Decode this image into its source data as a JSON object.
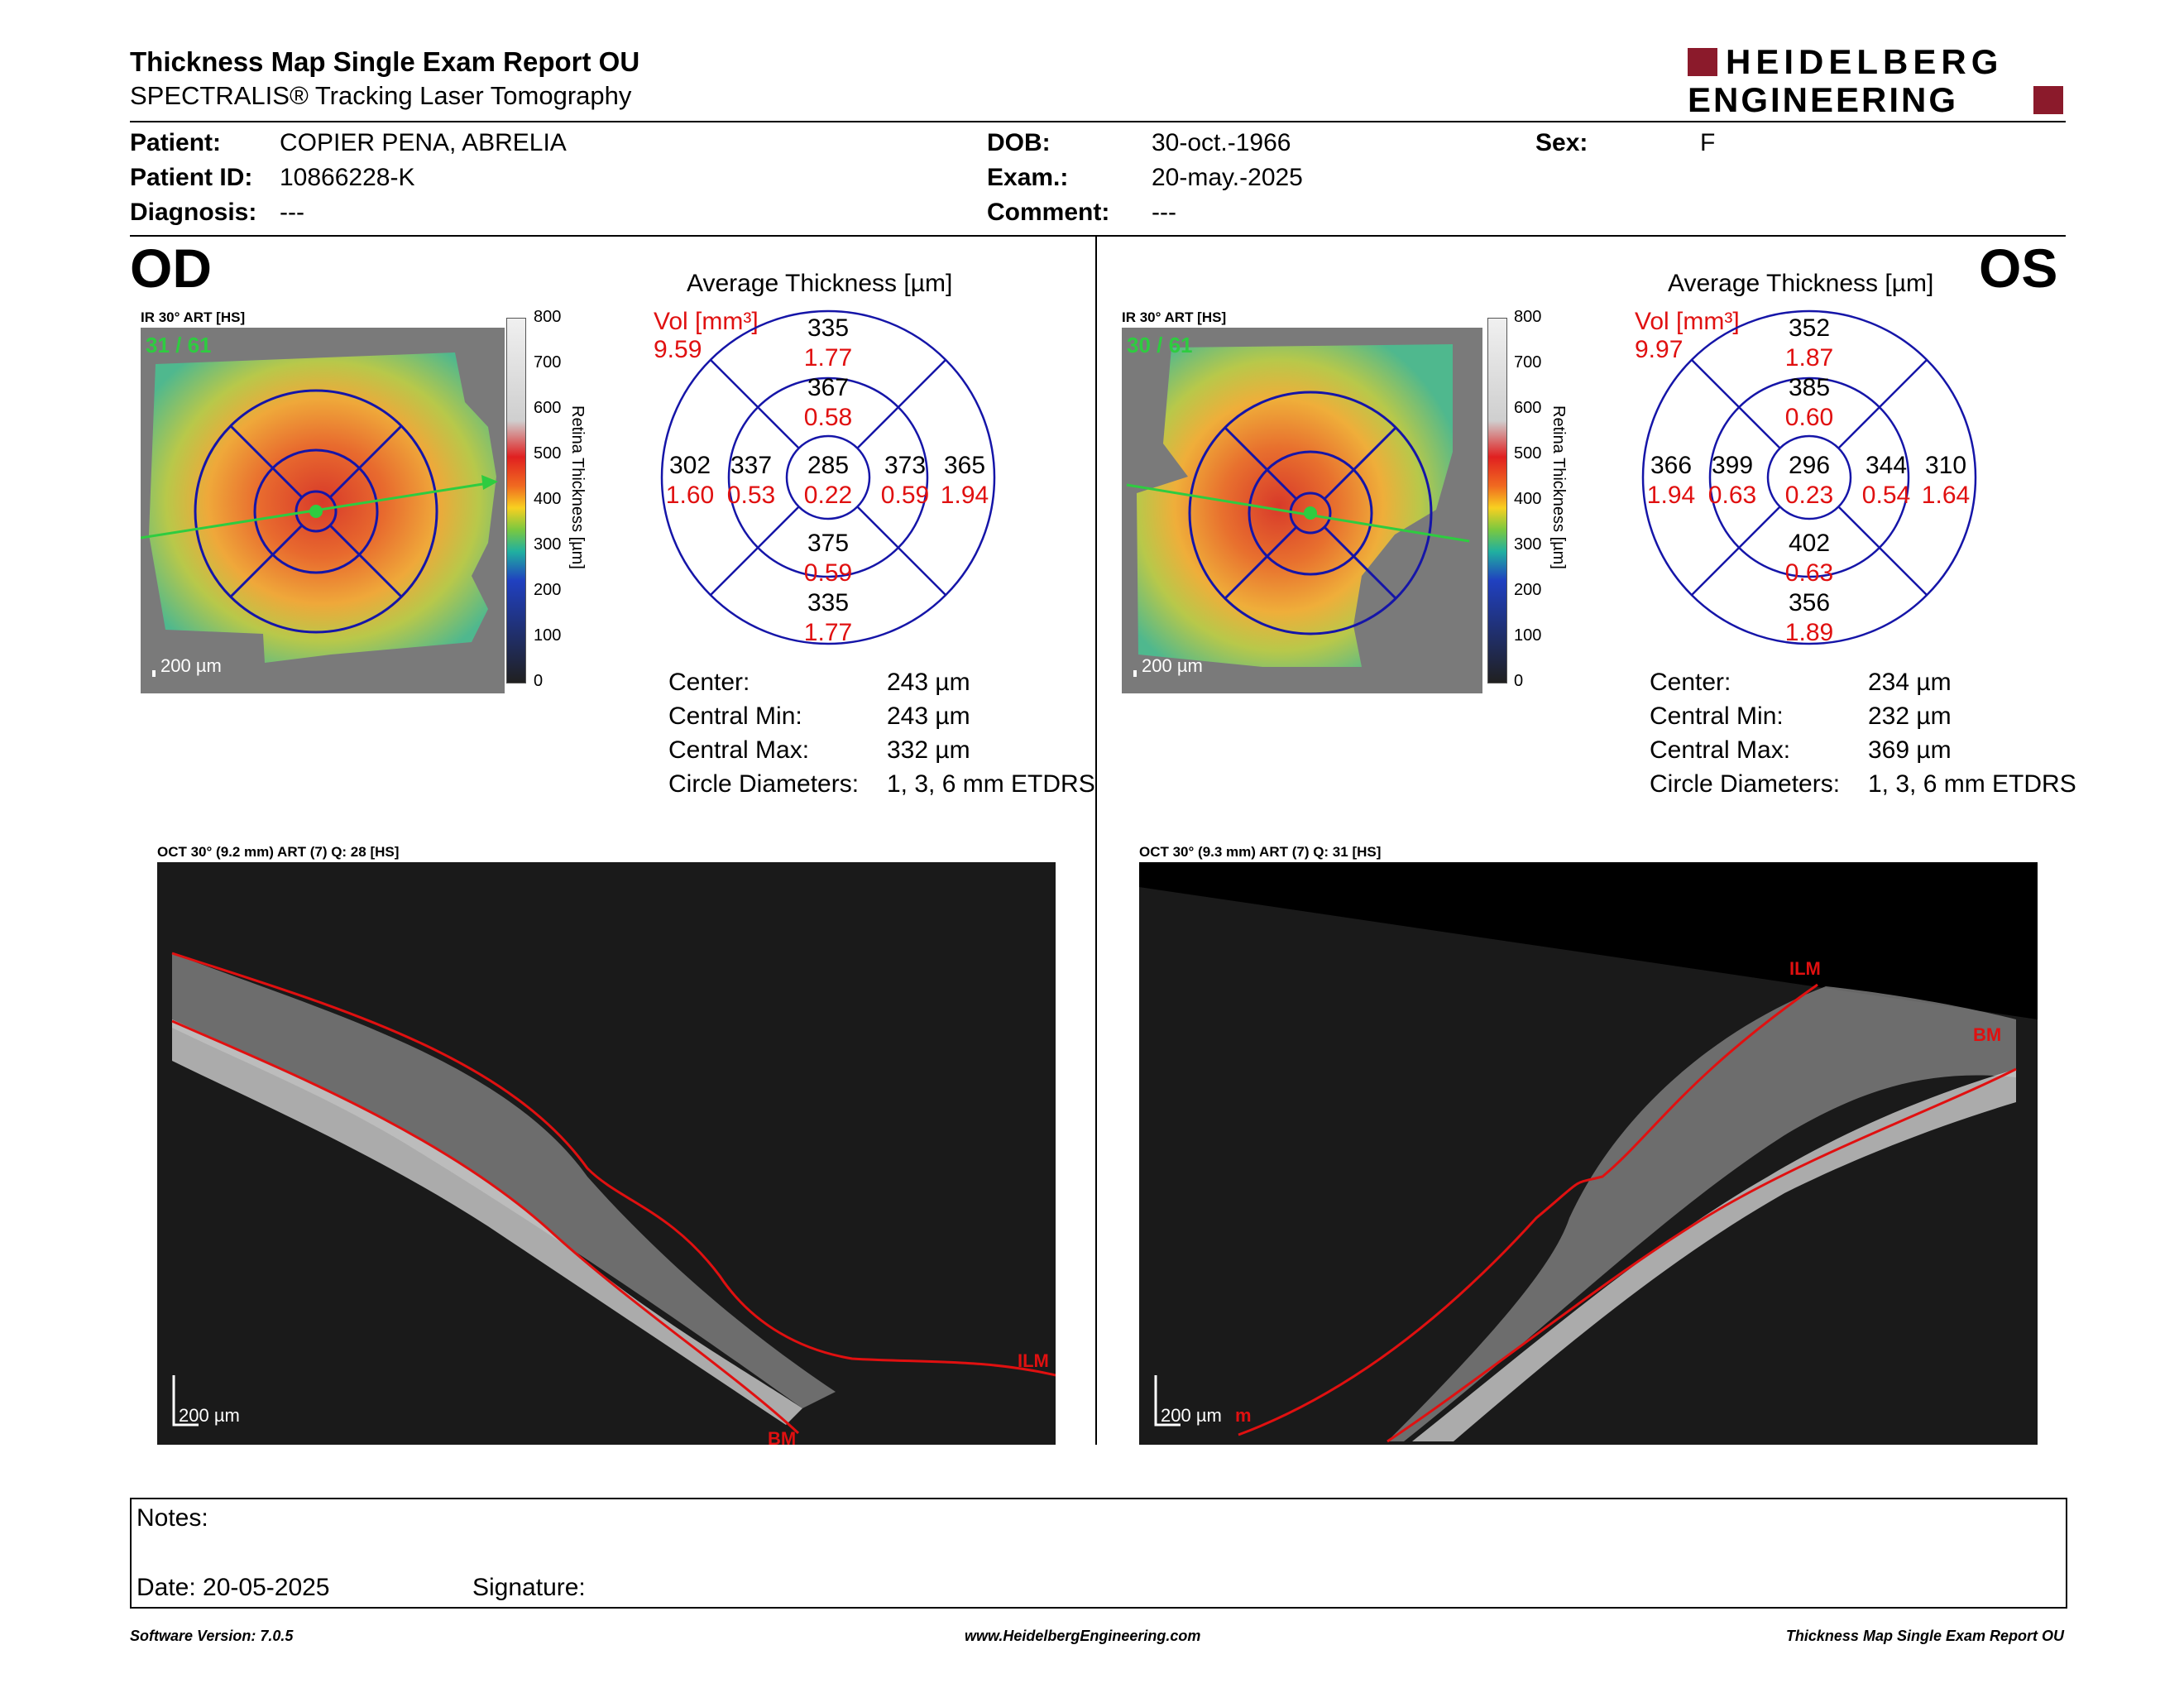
{
  "header": {
    "title": "Thickness Map Single Exam Report OU",
    "subtitle": "SPECTRALIS® Tracking Laser Tomography",
    "logo_line1": "HEIDELBERG",
    "logo_line2": "ENGINEERING",
    "brand_color": "#8b1a2b"
  },
  "patient": {
    "name_label": "Patient:",
    "name": "COPIER PENA, ABRELIA",
    "id_label": "Patient ID:",
    "id": "10866228-K",
    "diagnosis_label": "Diagnosis:",
    "diagnosis": "---",
    "dob_label": "DOB:",
    "dob": "30-oct.-1966",
    "exam_label": "Exam.:",
    "exam": "20-may.-2025",
    "comment_label": "Comment:",
    "comment": "---",
    "sex_label": "Sex:",
    "sex": "F"
  },
  "od": {
    "eye": "OD",
    "ir_label": "IR 30° ART [HS]",
    "frames": "31 / 61",
    "scale_bar": "200 µm",
    "avg_title": "Average Thickness [µm]",
    "vol_label": "Vol [mm³]",
    "vol_total": "9.59",
    "sectors": {
      "outer_sup": {
        "t": "335",
        "v": "1.77"
      },
      "inner_sup": {
        "t": "367",
        "v": "0.58"
      },
      "outer_left": {
        "t": "302",
        "v": "1.60"
      },
      "inner_left": {
        "t": "337",
        "v": "0.53"
      },
      "center": {
        "t": "285",
        "v": "0.22"
      },
      "inner_right": {
        "t": "373",
        "v": "0.59"
      },
      "outer_right": {
        "t": "365",
        "v": "1.94"
      },
      "inner_inf": {
        "t": "375",
        "v": "0.59"
      },
      "outer_inf": {
        "t": "335",
        "v": "1.77"
      }
    },
    "stats": [
      {
        "label": "Center:",
        "value": "243 µm"
      },
      {
        "label": "Central Min:",
        "value": "243 µm"
      },
      {
        "label": "Central Max:",
        "value": "332 µm"
      },
      {
        "label": "Circle Diameters:",
        "value": "1, 3, 6 mm ETDRS"
      }
    ],
    "oct_label": "OCT 30° (9.2 mm) ART (7) Q: 28 [HS]",
    "oct_scale": "200 µm",
    "layer_ilm": "ILM",
    "layer_bm": "BM"
  },
  "os": {
    "eye": "OS",
    "ir_label": "IR 30° ART [HS]",
    "frames": "30 / 61",
    "scale_bar": "200 µm",
    "avg_title": "Average Thickness [µm]",
    "vol_label": "Vol [mm³]",
    "vol_total": "9.97",
    "sectors": {
      "outer_sup": {
        "t": "352",
        "v": "1.87"
      },
      "inner_sup": {
        "t": "385",
        "v": "0.60"
      },
      "outer_left": {
        "t": "366",
        "v": "1.94"
      },
      "inner_left": {
        "t": "399",
        "v": "0.63"
      },
      "center": {
        "t": "296",
        "v": "0.23"
      },
      "inner_right": {
        "t": "344",
        "v": "0.54"
      },
      "outer_right": {
        "t": "310",
        "v": "1.64"
      },
      "inner_inf": {
        "t": "402",
        "v": "0.63"
      },
      "outer_inf": {
        "t": "356",
        "v": "1.89"
      }
    },
    "stats": [
      {
        "label": "Center:",
        "value": "234 µm"
      },
      {
        "label": "Central Min:",
        "value": "232 µm"
      },
      {
        "label": "Central Max:",
        "value": "369 µm"
      },
      {
        "label": "Circle Diameters:",
        "value": "1, 3, 6 mm ETDRS"
      }
    ],
    "oct_label": "OCT 30° (9.3 mm) ART (7) Q: 31 [HS]",
    "oct_scale": "200 µm",
    "layer_ilm": "ILM",
    "layer_bm": "BM",
    "layer_m": "m"
  },
  "color_scale": {
    "title": "Retina Thickness [µm]",
    "ticks": [
      "800",
      "700",
      "600",
      "500",
      "400",
      "300",
      "200",
      "100",
      "0"
    ]
  },
  "notes": {
    "notes_label": "Notes:",
    "date_label": "Date: 20-05-2025",
    "signature_label": "Signature:"
  },
  "footer": {
    "left": "Software Version: 7.0.5",
    "center": "www.HeidelbergEngineering.com",
    "right": "Thickness Map Single Exam Report OU"
  }
}
